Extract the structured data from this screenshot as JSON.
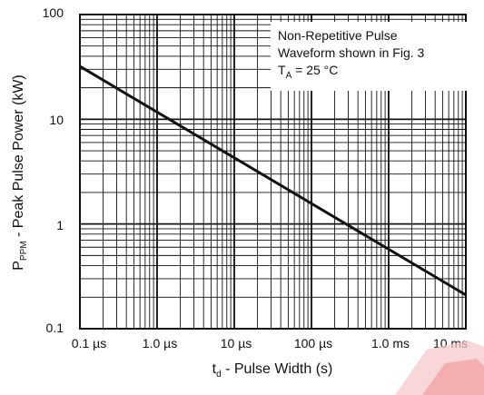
{
  "chart_data": {
    "type": "line",
    "xscale": "log",
    "yscale": "log",
    "xlim": [
      1e-07,
      0.01
    ],
    "ylim": [
      0.1,
      100
    ],
    "x_tick_labels": [
      "0.1 µs",
      "1.0 µs",
      "10 µs",
      "100 µs",
      "1.0 ms",
      "10 ms"
    ],
    "y_tick_labels": [
      "0.1",
      "1",
      "10",
      "100"
    ],
    "xlabel_main": "t",
    "xlabel_sub": "d",
    "xlabel_rest": " - Pulse Width (s)",
    "ylabel_main": "P",
    "ylabel_sub": "PPM",
    "ylabel_rest": " - Peak Pulse Power (kW)",
    "annotation": {
      "line1": "Non-Repetitive Pulse",
      "line2": "Waveform shown in Fig. 3",
      "line3_main": "T",
      "line3_sub": "A",
      "line3_rest": " = 25 °C"
    },
    "grid": true,
    "series": [
      {
        "x": [
          1e-07,
          0.01
        ],
        "y": [
          32,
          0.21
        ]
      }
    ]
  },
  "colors": {
    "line": "#111111",
    "grid": "#111111",
    "watermark": "#e8171c"
  }
}
